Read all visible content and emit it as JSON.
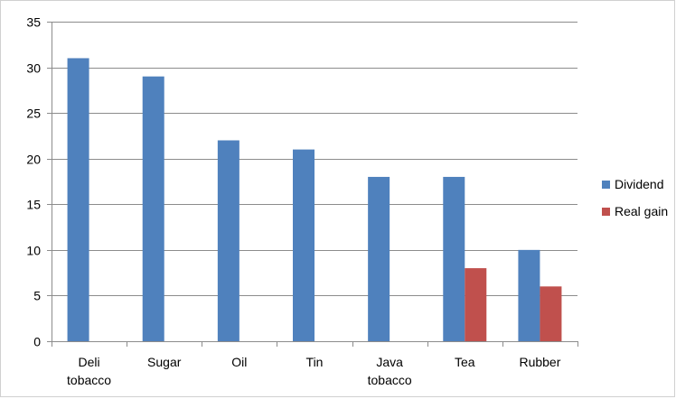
{
  "chart_data": {
    "type": "bar",
    "title": "",
    "xlabel": "",
    "ylabel": "",
    "categories": [
      [
        "Deli",
        "tobacco"
      ],
      [
        "Sugar"
      ],
      [
        "Oil"
      ],
      [
        "Tin"
      ],
      [
        "Java",
        "tobacco"
      ],
      [
        "Tea"
      ],
      [
        "Rubber"
      ]
    ],
    "series": [
      {
        "name": "Dividend",
        "color": "#4f81bd",
        "values": [
          31,
          29,
          22,
          21,
          18,
          18,
          10
        ]
      },
      {
        "name": "Real gain",
        "color": "#c0504d",
        "values": [
          null,
          null,
          null,
          null,
          null,
          8,
          6
        ]
      }
    ],
    "ylim": [
      0,
      35
    ],
    "yticks": [
      0,
      5,
      10,
      15,
      20,
      25,
      30,
      35
    ],
    "grid": true,
    "legend_position": "right"
  }
}
